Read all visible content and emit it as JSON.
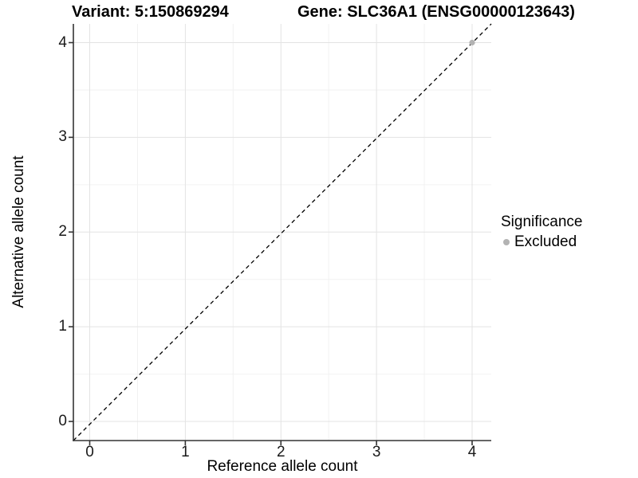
{
  "chart_data": {
    "type": "scatter",
    "title_left": "Variant: 5:150869294",
    "title_right": "Gene: SLC36A1 (ENSG00000123643)",
    "xlabel": "Reference allele count",
    "ylabel": "Alternative allele count",
    "xlim": [
      -0.2,
      4.2
    ],
    "ylim": [
      -0.2,
      4.2
    ],
    "x_ticks": [
      0,
      1,
      2,
      3,
      4
    ],
    "y_ticks": [
      0,
      1,
      2,
      3,
      4
    ],
    "x_tick_labels": [
      "0",
      "1",
      "2",
      "3",
      "4"
    ],
    "y_tick_labels": [
      "0",
      "1",
      "2",
      "3",
      "4"
    ],
    "x_minor_breaks": [
      0.5,
      1.5,
      2.5,
      3.5
    ],
    "y_minor_breaks": [
      0.5,
      1.5,
      2.5,
      3.5
    ],
    "grid": "major+minor",
    "points": [
      {
        "x": 4,
        "y": 4,
        "significance": "Excluded"
      }
    ],
    "reference_line": {
      "type": "identity",
      "slope": 1,
      "intercept": 0,
      "style": "dashed",
      "color": "#000000"
    },
    "legend": {
      "title": "Significance",
      "position": "right",
      "entries": [
        {
          "label": "Excluded",
          "color": "#b3b3b3",
          "marker": "circle"
        }
      ]
    },
    "colors": {
      "background": "#ffffff",
      "grid_major": "#e3e3e3",
      "grid_minor": "#f2f2f2",
      "axis_line": "#333333",
      "tick_text": "#1a1a1a",
      "point_excluded": "#b3b3b3",
      "dashed_line": "#000000"
    }
  }
}
